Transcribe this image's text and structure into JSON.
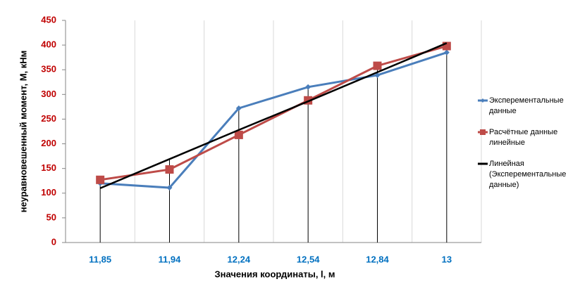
{
  "chart_data": {
    "type": "line",
    "x_label": "Значения координаты, l, м",
    "y_label": "неуравновешенный момент, М, кНм",
    "categories": [
      "11,85",
      "11,94",
      "12,24",
      "12,54",
      "12,84",
      "13"
    ],
    "series": [
      {
        "name": "Эксперементальные данные",
        "color": "#4a7ebb",
        "marker": "diamond",
        "values": [
          120,
          111,
          272,
          315,
          339,
          385
        ]
      },
      {
        "name": "Расчётные данные линейные",
        "color": "#be4b48",
        "marker": "square",
        "values": [
          127,
          148,
          218,
          288,
          358,
          398
        ]
      },
      {
        "name": "Линейная (Эксперементальные данные)",
        "color": "#000000",
        "marker": "none",
        "values": [
          110,
          169,
          228,
          286,
          345,
          404
        ]
      }
    ],
    "ylim": [
      0,
      450
    ],
    "yticks": [
      0,
      50,
      100,
      150,
      200,
      250,
      300,
      350,
      400,
      450
    ],
    "drop_lines": true,
    "legend": "right"
  }
}
